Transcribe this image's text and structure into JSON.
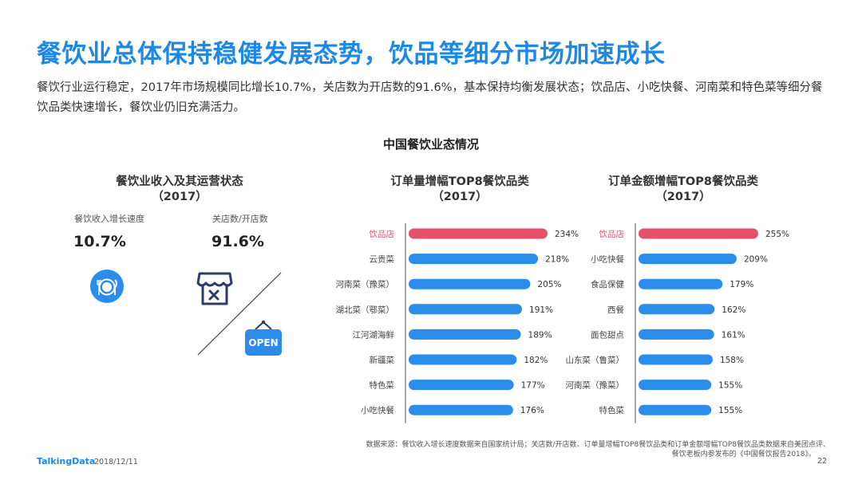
{
  "title": "餐饮业总体保持稳健发展态势，饮品等细分市场加速成长",
  "intro": "餐饮行业运行稳定，2017年市场规模同比增长10.7%，关店数为开店数的91.6%，基本保持均衡发展状态；饮品店、小吃快餐、河南菜和特色菜等细分餐饮品类快速增长，餐饮业仍旧充满活力。",
  "section_title": "中国餐饮业态情况",
  "left_panel": {
    "title_line1": "餐饮业收入及其运营状态",
    "title_line2": "（2017）",
    "metric1_label": "餐饮收入增长速度",
    "metric1_value": "10.7%",
    "metric2_label": "关店数/开店数",
    "metric2_value": "91.6%",
    "open_sign": "OPEN"
  },
  "colors": {
    "title": "#1e88e5",
    "bar_blue": "#2b8cea",
    "bar_highlight": "#e8506a",
    "axis": "#555555",
    "icon_navy": "#2d3a6b"
  },
  "chart_data": [
    {
      "type": "bar",
      "orientation": "horizontal",
      "title_line1": "订单量增幅TOP8餐饮品类",
      "title_line2": "（2017）",
      "categories": [
        "饮品店",
        "云贵菜",
        "河南菜（豫菜）",
        "湖北菜（鄂菜）",
        "江河湖海鲜",
        "新疆菜",
        "特色菜",
        "小吃快餐"
      ],
      "values": [
        234,
        218,
        205,
        191,
        189,
        182,
        177,
        176
      ],
      "value_labels": [
        "234%",
        "218%",
        "205%",
        "191%",
        "189%",
        "182%",
        "177%",
        "176%"
      ],
      "highlight_index": 0,
      "unit": "%"
    },
    {
      "type": "bar",
      "orientation": "horizontal",
      "title_line1": "订单金额增幅TOP8餐饮品类",
      "title_line2": "（2017）",
      "categories": [
        "饮品店",
        "小吃快餐",
        "食品保健",
        "西餐",
        "面包甜点",
        "山东菜（鲁菜）",
        "河南菜（豫菜）",
        "特色菜"
      ],
      "values": [
        255,
        209,
        179,
        162,
        161,
        158,
        155,
        155
      ],
      "value_labels": [
        "255%",
        "209%",
        "179%",
        "162%",
        "161%",
        "158%",
        "155%",
        "155%"
      ],
      "highlight_index": 0,
      "unit": "%"
    }
  ],
  "footer": {
    "source_line1": "数据来源：餐饮收入增长速度数据来自国家统计局；关店数/开店数、订单量增幅TOP8餐饮品类和订单金额增幅TOP8餐饮品类数据来自美团点评、",
    "source_line2": "餐饮老板内参发布的《中国餐饮报告2018》。",
    "brand": "TalkingData",
    "date": "2018/12/11",
    "page_number": "22"
  }
}
